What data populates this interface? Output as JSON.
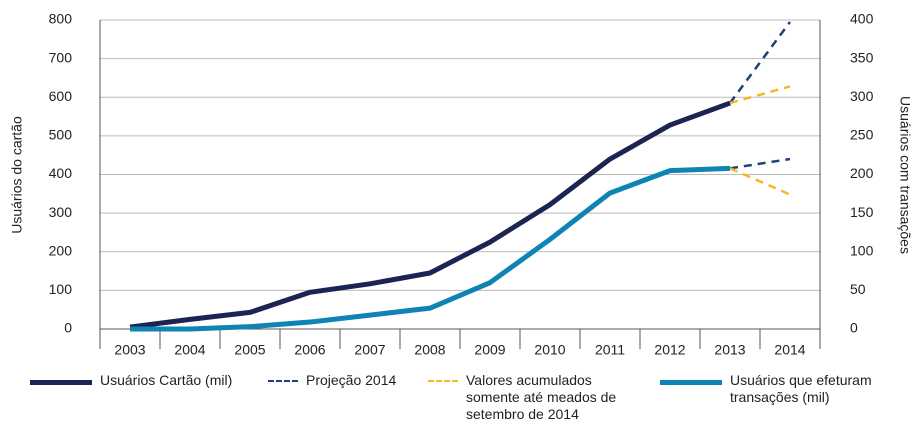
{
  "chart_data": {
    "type": "line",
    "ylabel": "Usuários do cartão",
    "y2label": "Usuários com transações",
    "categories": [
      "2003",
      "2004",
      "2005",
      "2006",
      "2007",
      "2008",
      "2009",
      "2010",
      "2011",
      "2012",
      "2013",
      "2014"
    ],
    "ylim": [
      0,
      800
    ],
    "yticks": [
      0,
      100,
      200,
      300,
      400,
      500,
      600,
      700,
      800
    ],
    "y2lim": [
      0,
      400
    ],
    "y2ticks": [
      0,
      50,
      100,
      150,
      200,
      250,
      300,
      350,
      400
    ],
    "grid": true,
    "legend": "bottom",
    "series": [
      {
        "name": "Usuários Cartão (mil)",
        "color": "#1b2452",
        "width": 5,
        "dash": false,
        "values": [
          5,
          25,
          43,
          95,
          117,
          145,
          225,
          322,
          440,
          528,
          585,
          null
        ]
      },
      {
        "name": "Projeção 2014",
        "color": "#1e3f7a",
        "width": 2.5,
        "dash": true,
        "values": [
          null,
          null,
          null,
          null,
          null,
          null,
          null,
          null,
          null,
          null,
          585,
          795
        ],
        "values_y2": [
          null,
          null,
          null,
          null,
          null,
          null,
          null,
          null,
          null,
          null,
          208,
          220
        ]
      },
      {
        "name": "Valores acumulados somente até meados de setembro de 2014",
        "color": "#f6b820",
        "width": 2.5,
        "dash": true,
        "values": [
          null,
          null,
          null,
          null,
          null,
          null,
          null,
          null,
          null,
          null,
          585,
          628
        ],
        "values_y2": [
          null,
          null,
          null,
          null,
          null,
          null,
          null,
          null,
          null,
          null,
          208,
          174
        ]
      },
      {
        "name": "Usuários que efeturam transações (mil)",
        "color": "#0e84b4",
        "width": 5,
        "dash": false,
        "axis": "y2",
        "values": [
          0,
          0,
          3,
          9,
          18,
          27,
          60,
          116,
          176,
          205,
          208,
          null
        ]
      }
    ]
  }
}
